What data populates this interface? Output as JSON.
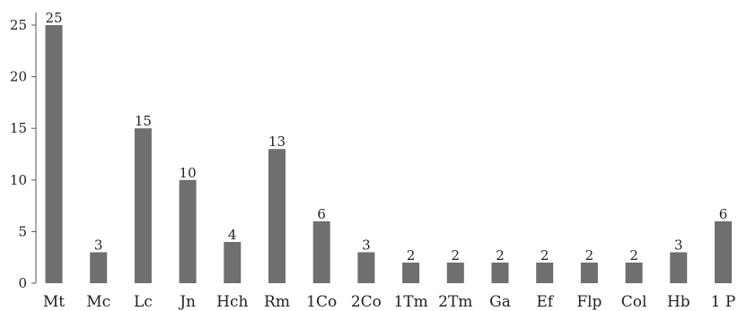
{
  "chart_data": {
    "type": "bar",
    "title": "",
    "xlabel": "",
    "ylabel": "",
    "categories": [
      "Mt",
      "Mc",
      "Lc",
      "Jn",
      "Hch",
      "Rm",
      "1Co",
      "2Co",
      "1Tm",
      "2Tm",
      "Ga",
      "Ef",
      "Flp",
      "Col",
      "Hb",
      "1 P"
    ],
    "values": [
      25,
      3,
      15,
      10,
      4,
      13,
      6,
      3,
      2,
      2,
      2,
      2,
      2,
      2,
      3,
      6
    ],
    "data_labels": [
      "25",
      "3",
      "15",
      "10",
      "4",
      "13",
      "6",
      "3",
      "2",
      "2",
      "2",
      "2",
      "2",
      "2",
      "3",
      "6"
    ],
    "y_ticks": [
      "0",
      "5",
      "10",
      "15",
      "20",
      "25"
    ],
    "ylim": [
      0,
      27
    ],
    "grid": false,
    "legend": "none",
    "colors": {
      "bar": "#6f6f6f",
      "axis": "#555555",
      "text": "#222222"
    }
  }
}
